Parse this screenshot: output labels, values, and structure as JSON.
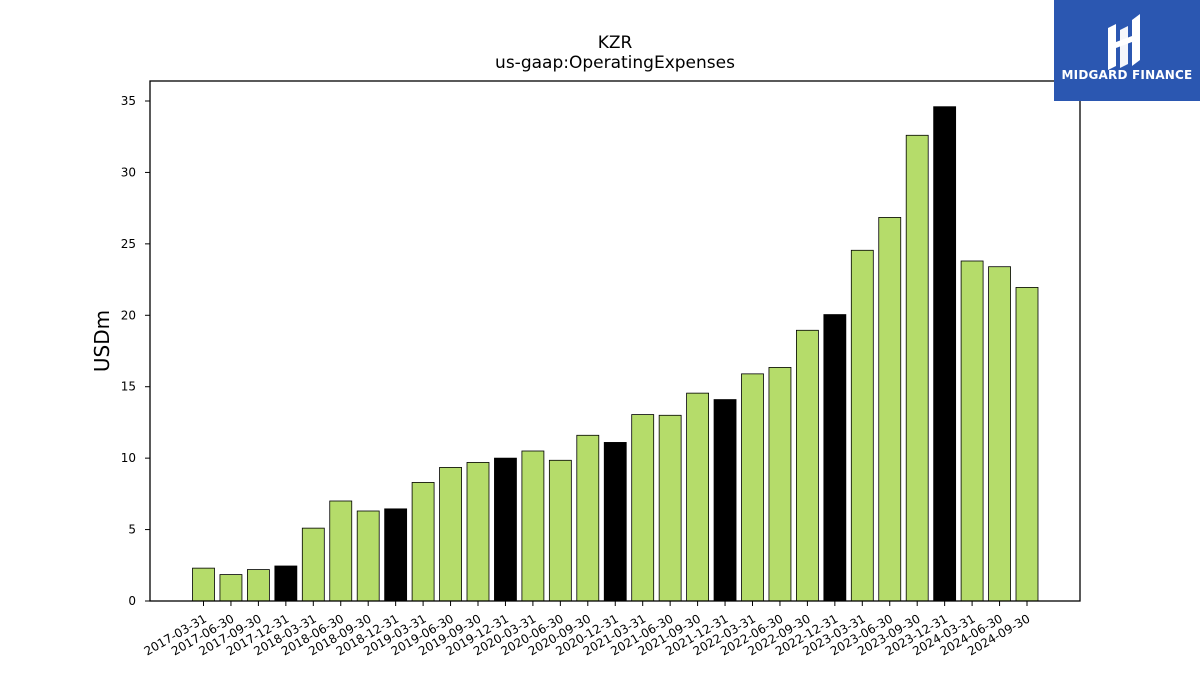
{
  "chart_data": {
    "type": "bar",
    "title": "KZR",
    "subtitle": "us-gaap:OperatingExpenses",
    "xlabel": "",
    "ylabel": "USDm",
    "ylim": [
      0,
      36.4
    ],
    "yticks": [
      0,
      5,
      10,
      15,
      20,
      25,
      30,
      35
    ],
    "grid": false,
    "colors": {
      "quarter": "#b5dc6a",
      "year_end": "#000000",
      "edge": "#000000"
    },
    "categories": [
      "2017-03-31",
      "2017-06-30",
      "2017-09-30",
      "2017-12-31",
      "2018-03-31",
      "2018-06-30",
      "2018-09-30",
      "2018-12-31",
      "2019-03-31",
      "2019-06-30",
      "2019-09-30",
      "2019-12-31",
      "2020-03-31",
      "2020-06-30",
      "2020-09-30",
      "2020-12-31",
      "2021-03-31",
      "2021-06-30",
      "2021-09-30",
      "2021-12-31",
      "2022-03-31",
      "2022-06-30",
      "2022-09-30",
      "2022-12-31",
      "2023-03-31",
      "2023-06-30",
      "2023-09-30",
      "2023-12-31",
      "2024-03-31",
      "2024-06-30",
      "2024-09-30"
    ],
    "values": [
      2.3,
      1.85,
      2.2,
      2.45,
      5.1,
      7.0,
      6.3,
      6.45,
      8.3,
      9.35,
      9.7,
      10.0,
      10.5,
      9.85,
      11.6,
      11.1,
      13.05,
      13.0,
      14.55,
      14.1,
      15.9,
      16.35,
      18.95,
      20.05,
      24.55,
      26.85,
      32.6,
      34.6,
      23.8,
      23.4,
      21.95
    ],
    "year_end": [
      false,
      false,
      false,
      true,
      false,
      false,
      false,
      true,
      false,
      false,
      false,
      true,
      false,
      false,
      false,
      true,
      false,
      false,
      false,
      true,
      false,
      false,
      false,
      true,
      false,
      false,
      false,
      true,
      false,
      false,
      false
    ]
  },
  "logo": {
    "text": "MIDGARD FINANCE",
    "icon": "midgard-logo-icon",
    "background": "#2b57b1"
  }
}
